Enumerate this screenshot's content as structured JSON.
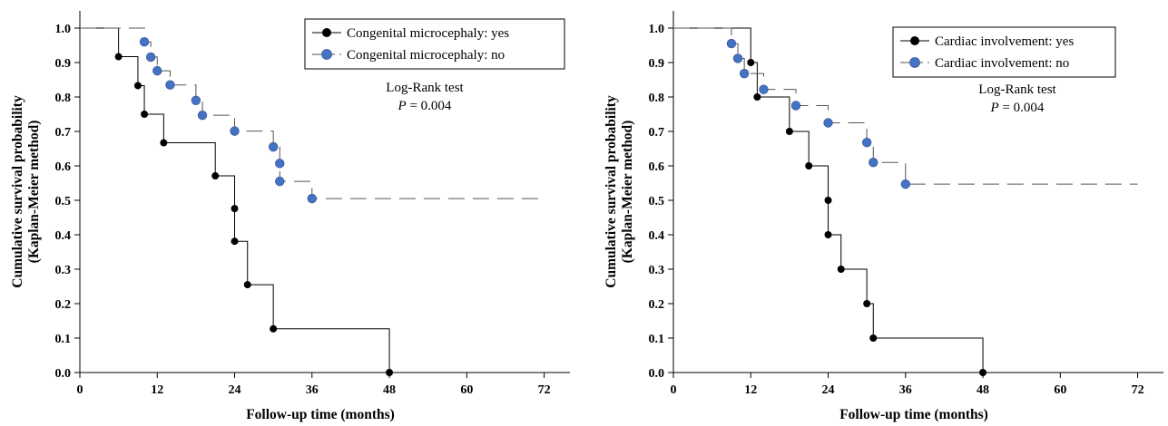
{
  "chart_data": [
    {
      "type": "line",
      "subtype": "kaplan-meier-step",
      "xlabel": "Follow-up time (months)",
      "ylabel_line1": "Cumulative survival probability",
      "ylabel_line2": "(Kaplan-Meier method)",
      "xlim": [
        0,
        76
      ],
      "ylim": [
        0,
        1.05
      ],
      "xticks": [
        "0",
        "12",
        "24",
        "36",
        "48",
        "60",
        "72"
      ],
      "yticks": [
        "0.0",
        "0.1",
        "0.2",
        "0.3",
        "0.4",
        "0.5",
        "0.6",
        "0.7",
        "0.8",
        "0.9",
        "1.0"
      ],
      "legend_position": "top-right",
      "annotation": {
        "line1": "Log-Rank test",
        "p_italic": "P",
        "p_rest": " = 0.004"
      },
      "series": [
        {
          "name": "Congenital microcephaly: yes",
          "color": "#000000",
          "dash": "solid",
          "start": [
            0,
            1.0
          ],
          "end": [
            48,
            0.0
          ],
          "steps": [
            [
              6,
              0.917
            ],
            [
              9,
              0.833
            ],
            [
              10,
              0.75
            ],
            [
              13,
              0.667
            ],
            [
              21,
              0.571
            ],
            [
              24,
              0.476
            ],
            [
              24,
              0.381
            ],
            [
              26,
              0.255
            ],
            [
              30,
              0.127
            ],
            [
              48,
              0.0
            ]
          ],
          "markers": [
            [
              6,
              0.917
            ],
            [
              9,
              0.833
            ],
            [
              10,
              0.75
            ],
            [
              13,
              0.667
            ],
            [
              21,
              0.571
            ],
            [
              24,
              0.476
            ],
            [
              24,
              0.381
            ],
            [
              26,
              0.255
            ],
            [
              30,
              0.127
            ],
            [
              48,
              0.0
            ]
          ]
        },
        {
          "name": "Congenital microcephaly: no",
          "color": "#4472c4",
          "dash": "dashed",
          "start": [
            0,
            1.0
          ],
          "end": [
            72,
            0.505
          ],
          "steps": [
            [
              10,
              0.96
            ],
            [
              11,
              0.916
            ],
            [
              12,
              0.876
            ],
            [
              14,
              0.835
            ],
            [
              18,
              0.79
            ],
            [
              19,
              0.747
            ],
            [
              24,
              0.701
            ],
            [
              30,
              0.655
            ],
            [
              31,
              0.607
            ],
            [
              31,
              0.555
            ],
            [
              36,
              0.505
            ]
          ],
          "markers": [
            [
              10,
              0.96
            ],
            [
              11,
              0.916
            ],
            [
              12,
              0.876
            ],
            [
              14,
              0.835
            ],
            [
              18,
              0.79
            ],
            [
              19,
              0.747
            ],
            [
              24,
              0.701
            ],
            [
              30,
              0.655
            ],
            [
              31,
              0.607
            ],
            [
              31,
              0.555
            ],
            [
              36,
              0.505
            ]
          ]
        }
      ]
    },
    {
      "type": "line",
      "subtype": "kaplan-meier-step",
      "xlabel": "Follow-up time (months)",
      "ylabel_line1": "Cumulative survival probability",
      "ylabel_line2": "(Kaplan-Meier method)",
      "xlim": [
        0,
        76
      ],
      "ylim": [
        0,
        1.05
      ],
      "xticks": [
        "0",
        "12",
        "24",
        "36",
        "48",
        "60",
        "72"
      ],
      "yticks": [
        "0.0",
        "0.1",
        "0.2",
        "0.3",
        "0.4",
        "0.5",
        "0.6",
        "0.7",
        "0.8",
        "0.9",
        "1.0"
      ],
      "legend_position": "top-right",
      "annotation": {
        "line1": "Log-Rank test",
        "p_italic": "P",
        "p_rest": " = 0.004"
      },
      "series": [
        {
          "name": "Cardiac involvement: yes",
          "color": "#000000",
          "dash": "solid",
          "start": [
            0,
            1.0
          ],
          "end": [
            48,
            0.0
          ],
          "steps": [
            [
              12,
              0.9
            ],
            [
              13,
              0.8
            ],
            [
              18,
              0.7
            ],
            [
              21,
              0.6
            ],
            [
              24,
              0.5
            ],
            [
              24,
              0.4
            ],
            [
              26,
              0.3
            ],
            [
              30,
              0.2
            ],
            [
              31,
              0.1
            ],
            [
              48,
              0.0
            ]
          ],
          "markers": [
            [
              12,
              0.9
            ],
            [
              13,
              0.8
            ],
            [
              18,
              0.7
            ],
            [
              21,
              0.6
            ],
            [
              24,
              0.5
            ],
            [
              24,
              0.4
            ],
            [
              26,
              0.3
            ],
            [
              30,
              0.2
            ],
            [
              31,
              0.1
            ],
            [
              48,
              0.0
            ]
          ]
        },
        {
          "name": "Cardiac involvement: no",
          "color": "#4472c4",
          "dash": "dashed",
          "start": [
            0,
            1.0
          ],
          "end": [
            72,
            0.547
          ],
          "steps": [
            [
              9,
              0.955
            ],
            [
              10,
              0.912
            ],
            [
              11,
              0.868
            ],
            [
              14,
              0.822
            ],
            [
              19,
              0.775
            ],
            [
              24,
              0.725
            ],
            [
              30,
              0.668
            ],
            [
              31,
              0.61
            ],
            [
              36,
              0.547
            ]
          ],
          "markers": [
            [
              9,
              0.955
            ],
            [
              10,
              0.912
            ],
            [
              11,
              0.868
            ],
            [
              14,
              0.822
            ],
            [
              19,
              0.775
            ],
            [
              24,
              0.725
            ],
            [
              30,
              0.668
            ],
            [
              31,
              0.61
            ],
            [
              36,
              0.547
            ]
          ]
        }
      ]
    }
  ]
}
